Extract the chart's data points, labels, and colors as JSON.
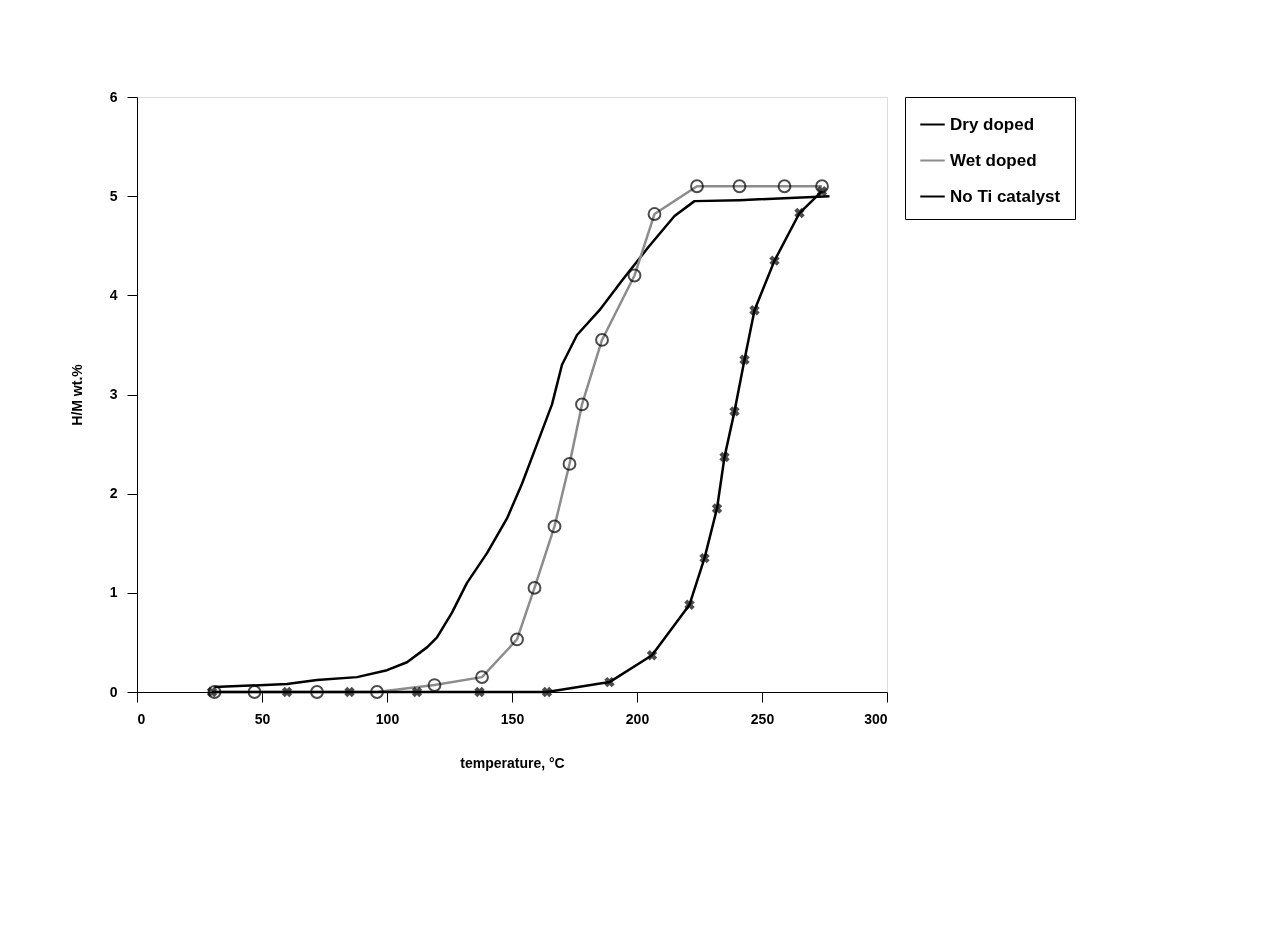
{
  "chart_data": {
    "type": "line",
    "xlabel": "temperature,   °C",
    "ylabel": "H/M wt.%",
    "xlim": [
      0,
      300
    ],
    "xticks": [
      0,
      50,
      100,
      150,
      200,
      250,
      300
    ],
    "ylim": [
      0,
      6
    ],
    "yticks": [
      0,
      1,
      2,
      3,
      4,
      5,
      6
    ],
    "grid": false,
    "legend": "right",
    "line_style": "solid",
    "series": [
      {
        "name": "Dry doped",
        "color": "#000000",
        "marker": "none",
        "x": [
          31,
          60,
          72,
          88,
          100,
          108,
          116,
          120,
          126,
          132,
          140,
          148,
          154,
          160,
          166,
          170,
          176,
          185,
          194,
          205,
          215,
          223,
          241,
          277
        ],
        "values": [
          0.05,
          0.08,
          0.12,
          0.15,
          0.22,
          0.3,
          0.45,
          0.55,
          0.8,
          1.1,
          1.4,
          1.75,
          2.1,
          2.5,
          2.9,
          3.3,
          3.6,
          3.85,
          4.15,
          4.5,
          4.8,
          4.95,
          4.96,
          5.0
        ]
      },
      {
        "name": "Wet doped",
        "color": "#8c8c8c",
        "marker": "circle",
        "x": [
          31,
          47,
          72,
          96,
          119,
          138,
          152,
          159,
          167,
          173,
          178,
          186,
          199,
          207,
          224,
          241,
          259,
          274
        ],
        "values": [
          0,
          0,
          0,
          0,
          0.07,
          0.15,
          0.53,
          1.05,
          1.67,
          2.3,
          2.9,
          3.55,
          4.2,
          4.82,
          5.1,
          5.1,
          5.1,
          5.1
        ]
      },
      {
        "name": "No Ti catalyst",
        "color": "#000000",
        "marker": "cross",
        "x": [
          30,
          60,
          85,
          112,
          137,
          164,
          189,
          206,
          221,
          227,
          232,
          235,
          239,
          243,
          247,
          255,
          265,
          274
        ],
        "values": [
          0,
          0,
          0,
          0,
          0,
          0,
          0.1,
          0.37,
          0.88,
          1.35,
          1.85,
          2.37,
          2.83,
          3.35,
          3.85,
          4.35,
          4.83,
          5.05
        ]
      }
    ]
  }
}
